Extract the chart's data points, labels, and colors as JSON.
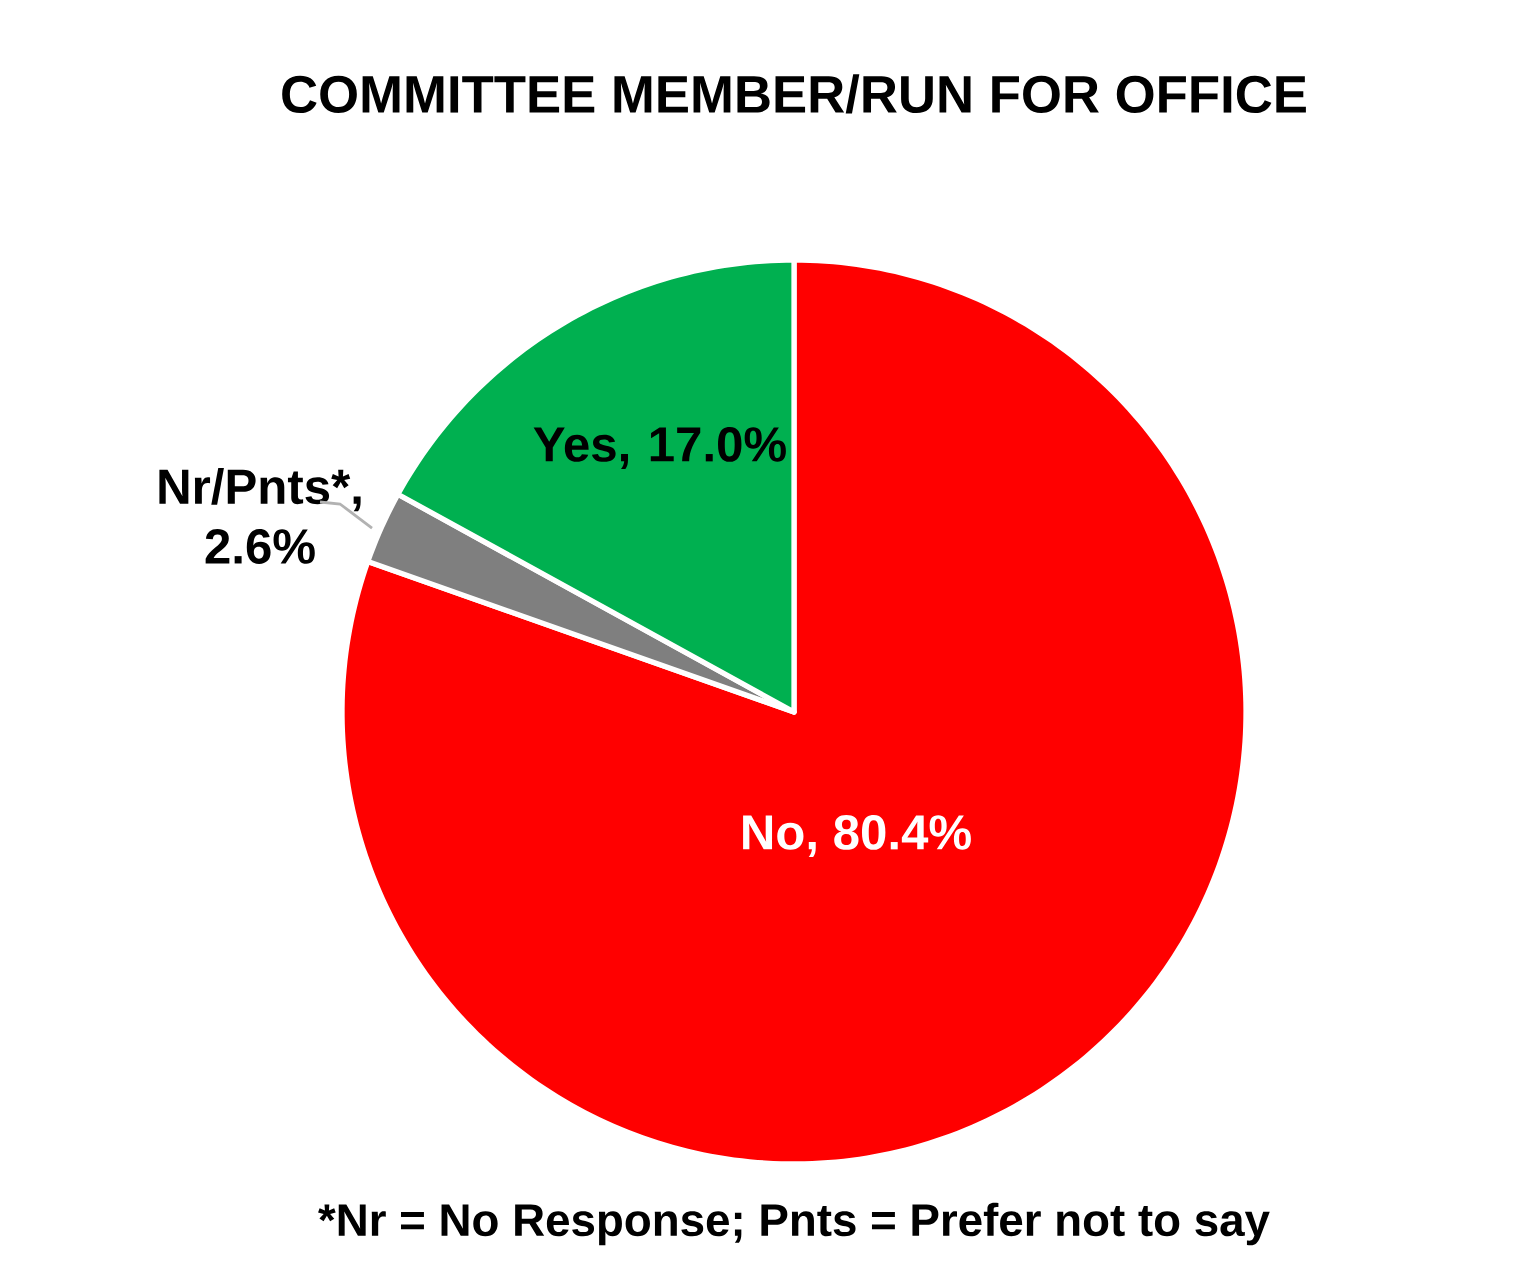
{
  "chart_data": {
    "type": "pie",
    "title": "COMMITTEE MEMBER/RUN FOR OFFICE",
    "categories": [
      "No",
      "Nr/Pnts*",
      "Yes"
    ],
    "values": [
      80.4,
      2.6,
      17.0
    ],
    "value_labels": [
      ", 80.4%",
      ", 2.6%",
      ", 17.0%"
    ],
    "colors": [
      "#ff0000",
      "#7f7f7f",
      "#00b050"
    ],
    "annotations": [
      "*Nr = No Response; Pnts = Prefer not to say"
    ]
  }
}
